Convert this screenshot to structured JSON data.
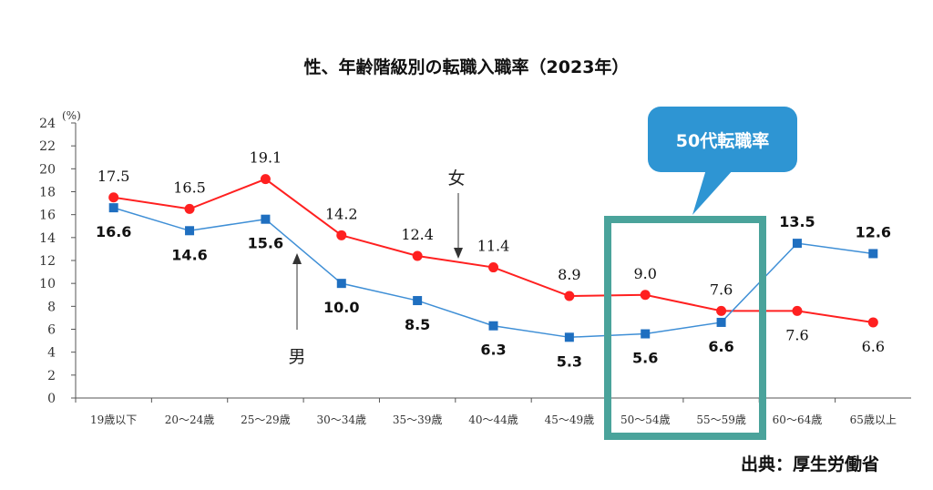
{
  "chart_data": {
    "type": "line",
    "title": "性、年齢階級別の転職入職率（2023年）",
    "ylabel": "(%)",
    "ylim": [
      0,
      24
    ],
    "yticks": [
      0,
      2,
      4,
      6,
      8,
      10,
      12,
      14,
      16,
      18,
      20,
      22,
      24
    ],
    "grid": false,
    "categories": [
      "19歳以下",
      "20～24歳",
      "25～29歳",
      "30～34歳",
      "35～39歳",
      "40～44歳",
      "45～49歳",
      "50～54歳",
      "55～59歳",
      "60～64歳",
      "65歳以上"
    ],
    "series": [
      {
        "name": "女",
        "color": "#ff2020",
        "marker": "circle",
        "values": [
          17.5,
          16.5,
          19.1,
          14.2,
          12.4,
          11.4,
          8.9,
          9.0,
          7.6,
          7.6,
          6.6
        ]
      },
      {
        "name": "男",
        "color": "#3f8fd6",
        "marker": "square",
        "values": [
          16.6,
          14.6,
          15.6,
          10.0,
          8.5,
          6.3,
          5.3,
          5.6,
          6.6,
          13.5,
          12.6
        ]
      }
    ],
    "annotations": {
      "callout": "50代転職率",
      "callout_color": "#2e95d3",
      "highlight_color": "#4aa39b",
      "highlight_categories": [
        "50～54歳",
        "55～59歳"
      ],
      "source": "出典：厚生労働省"
    }
  }
}
